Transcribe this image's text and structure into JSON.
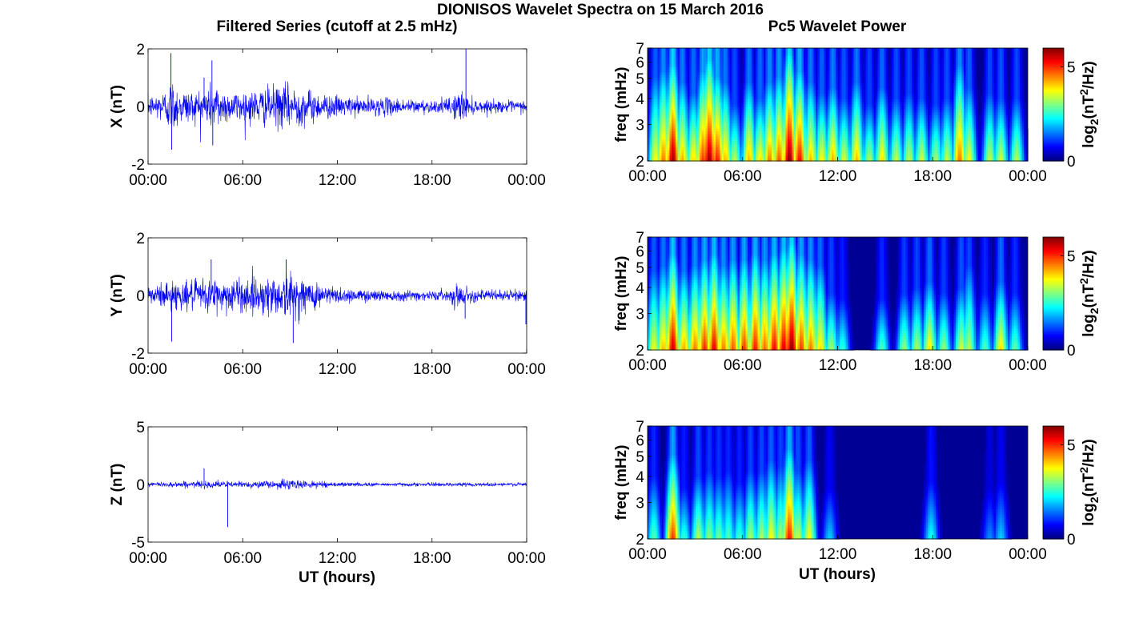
{
  "figure": {
    "suptitle": "DIONISOS Wavelet Spectra on 15 March 2016",
    "left_title": "Filtered Series (cutoff at 2.5 mHz)",
    "right_title": "Pc5 Wavelet Power",
    "xlabel": "UT (hours)"
  },
  "chart_data": [
    {
      "type": "line",
      "component": "X",
      "ylabel": "X (nT)",
      "ylim": [
        -2,
        2
      ],
      "yticks": [
        "-2",
        "0",
        "2"
      ],
      "xlim": [
        0,
        24
      ],
      "xticks": [
        "00:00",
        "06:00",
        "12:00",
        "18:00",
        "00:00"
      ],
      "color": "#0000ff",
      "envelope_hours": [
        0,
        1,
        1.5,
        2,
        3,
        4,
        4.5,
        5,
        6,
        7,
        8,
        9,
        10,
        11,
        12,
        13,
        14,
        15,
        16,
        17,
        18,
        19,
        19.8,
        20.3,
        21,
        22,
        23,
        24
      ],
      "envelope_amp": [
        0.35,
        0.55,
        0.95,
        0.6,
        0.55,
        0.75,
        0.8,
        0.5,
        0.55,
        0.6,
        0.7,
        0.75,
        0.6,
        0.45,
        0.35,
        0.3,
        0.3,
        0.3,
        0.25,
        0.25,
        0.2,
        0.25,
        0.6,
        0.3,
        0.2,
        0.2,
        0.2,
        0.2
      ],
      "spikes": [
        {
          "x": 1.45,
          "y": 1.85
        },
        {
          "x": 1.5,
          "y": -1.5
        },
        {
          "x": 4.05,
          "y": 1.6
        },
        {
          "x": 4.1,
          "y": -1.35
        },
        {
          "x": 20.15,
          "y": 2.0
        },
        {
          "x": 3.55,
          "y": 1.0
        }
      ]
    },
    {
      "type": "line",
      "component": "Y",
      "ylabel": "Y (nT)",
      "ylim": [
        -2,
        2
      ],
      "yticks": [
        "-2",
        "0",
        "2"
      ],
      "xlim": [
        0,
        24
      ],
      "xticks": [
        "00:00",
        "06:00",
        "12:00",
        "18:00",
        "00:00"
      ],
      "color": "#0000ff",
      "envelope_hours": [
        0,
        1,
        1.5,
        2,
        3,
        4,
        5,
        6,
        7,
        8,
        9,
        10,
        11,
        12,
        13,
        14,
        15,
        16,
        17,
        18,
        19,
        19.8,
        20.3,
        21,
        22,
        23,
        24
      ],
      "envelope_amp": [
        0.35,
        0.45,
        0.55,
        0.45,
        0.5,
        0.6,
        0.55,
        0.6,
        0.6,
        0.7,
        0.75,
        0.55,
        0.4,
        0.3,
        0.22,
        0.2,
        0.2,
        0.18,
        0.18,
        0.15,
        0.18,
        0.45,
        0.22,
        0.2,
        0.18,
        0.18,
        0.2
      ],
      "spikes": [
        {
          "x": 1.5,
          "y": -1.6
        },
        {
          "x": 4.0,
          "y": 1.25
        },
        {
          "x": 8.75,
          "y": 1.25
        },
        {
          "x": 9.2,
          "y": -1.65
        },
        {
          "x": 20.1,
          "y": -0.8
        },
        {
          "x": 23.95,
          "y": -1.0
        }
      ]
    },
    {
      "type": "line",
      "component": "Z",
      "ylabel": "Z (nT)",
      "ylim": [
        -5,
        5
      ],
      "yticks": [
        "-5",
        "0",
        "5"
      ],
      "xlim": [
        0,
        24
      ],
      "xticks": [
        "00:00",
        "06:00",
        "12:00",
        "18:00",
        "00:00"
      ],
      "color": "#0000ff",
      "envelope_hours": [
        0,
        2,
        4,
        6,
        8,
        9,
        10,
        12,
        14,
        16,
        18,
        20,
        22,
        24
      ],
      "envelope_amp": [
        0.2,
        0.25,
        0.3,
        0.25,
        0.35,
        0.45,
        0.3,
        0.2,
        0.15,
        0.15,
        0.15,
        0.15,
        0.15,
        0.15
      ],
      "spikes": [
        {
          "x": 3.55,
          "y": 1.4
        },
        {
          "x": 5.05,
          "y": -3.7
        }
      ]
    },
    {
      "type": "heatmap",
      "component": "X",
      "ylabel": "freq (mHz)",
      "yscale": "log",
      "ylim": [
        2,
        7
      ],
      "yticks": [
        "2",
        "3",
        "4",
        "5",
        "6",
        "7"
      ],
      "xlim": [
        0,
        24
      ],
      "xticks": [
        "00:00",
        "06:00",
        "12:00",
        "18:00",
        "00:00"
      ],
      "colormap": "jet",
      "clim": [
        0,
        6
      ],
      "colorbar_label": "log2(nT²/Hz)",
      "colorbar_ticks": [
        "0",
        "5"
      ],
      "bursts": [
        {
          "t": 0.5,
          "p": 3.8,
          "h": 0.75
        },
        {
          "t": 1.0,
          "p": 4.6,
          "h": 0.8
        },
        {
          "t": 1.6,
          "p": 5.9,
          "h": 0.85
        },
        {
          "t": 2.2,
          "p": 4.3,
          "h": 0.7
        },
        {
          "t": 2.9,
          "p": 4.0,
          "h": 0.6
        },
        {
          "t": 3.5,
          "p": 5.0,
          "h": 0.8
        },
        {
          "t": 3.9,
          "p": 5.9,
          "h": 0.9
        },
        {
          "t": 4.4,
          "p": 5.2,
          "h": 0.75
        },
        {
          "t": 4.9,
          "p": 4.2,
          "h": 0.7
        },
        {
          "t": 5.5,
          "p": 3.4,
          "h": 0.5
        },
        {
          "t": 6.4,
          "p": 4.2,
          "h": 0.7
        },
        {
          "t": 7.1,
          "p": 4.0,
          "h": 0.55
        },
        {
          "t": 7.7,
          "p": 4.6,
          "h": 0.7
        },
        {
          "t": 8.3,
          "p": 4.8,
          "h": 0.75
        },
        {
          "t": 8.95,
          "p": 6.0,
          "h": 0.95
        },
        {
          "t": 9.6,
          "p": 5.3,
          "h": 0.8
        },
        {
          "t": 10.3,
          "p": 4.2,
          "h": 0.7
        },
        {
          "t": 11.0,
          "p": 3.8,
          "h": 0.6
        },
        {
          "t": 11.7,
          "p": 4.3,
          "h": 0.65
        },
        {
          "t": 12.4,
          "p": 3.6,
          "h": 0.55
        },
        {
          "t": 13.2,
          "p": 4.2,
          "h": 0.7
        },
        {
          "t": 14.0,
          "p": 3.3,
          "h": 0.5
        },
        {
          "t": 14.8,
          "p": 4.0,
          "h": 0.65
        },
        {
          "t": 15.7,
          "p": 3.5,
          "h": 0.55
        },
        {
          "t": 16.5,
          "p": 3.4,
          "h": 0.6
        },
        {
          "t": 17.3,
          "p": 3.6,
          "h": 0.55
        },
        {
          "t": 18.2,
          "p": 3.3,
          "h": 0.5
        },
        {
          "t": 18.9,
          "p": 3.5,
          "h": 0.55
        },
        {
          "t": 19.7,
          "p": 4.6,
          "h": 0.85
        },
        {
          "t": 20.3,
          "p": 3.8,
          "h": 0.65
        },
        {
          "t": 21.6,
          "p": 3.4,
          "h": 0.6
        },
        {
          "t": 22.3,
          "p": 3.6,
          "h": 0.55
        },
        {
          "t": 23.3,
          "p": 3.4,
          "h": 0.55
        }
      ]
    },
    {
      "type": "heatmap",
      "component": "Y",
      "ylabel": "freq (mHz)",
      "yscale": "log",
      "ylim": [
        2,
        7
      ],
      "yticks": [
        "2",
        "3",
        "4",
        "5",
        "6",
        "7"
      ],
      "xlim": [
        0,
        24
      ],
      "xticks": [
        "00:00",
        "06:00",
        "12:00",
        "18:00",
        "00:00"
      ],
      "colormap": "jet",
      "clim": [
        0,
        6
      ],
      "colorbar_label": "log2(nT²/Hz)",
      "colorbar_ticks": [
        "0",
        "5"
      ],
      "bursts": [
        {
          "t": 0.4,
          "p": 3.7,
          "h": 0.7
        },
        {
          "t": 1.0,
          "p": 4.2,
          "h": 0.75
        },
        {
          "t": 1.6,
          "p": 5.6,
          "h": 0.85
        },
        {
          "t": 2.3,
          "p": 4.3,
          "h": 0.7
        },
        {
          "t": 3.0,
          "p": 4.6,
          "h": 0.75
        },
        {
          "t": 3.6,
          "p": 5.1,
          "h": 0.8
        },
        {
          "t": 4.2,
          "p": 5.4,
          "h": 0.85
        },
        {
          "t": 4.8,
          "p": 4.6,
          "h": 0.75
        },
        {
          "t": 5.4,
          "p": 4.8,
          "h": 0.8
        },
        {
          "t": 6.1,
          "p": 5.0,
          "h": 0.8
        },
        {
          "t": 6.8,
          "p": 5.2,
          "h": 0.85
        },
        {
          "t": 7.4,
          "p": 4.7,
          "h": 0.8
        },
        {
          "t": 8.0,
          "p": 5.3,
          "h": 0.85
        },
        {
          "t": 8.6,
          "p": 5.5,
          "h": 0.9
        },
        {
          "t": 9.1,
          "p": 6.0,
          "h": 0.95
        },
        {
          "t": 9.7,
          "p": 5.0,
          "h": 0.85
        },
        {
          "t": 10.3,
          "p": 4.6,
          "h": 0.8
        },
        {
          "t": 10.9,
          "p": 4.0,
          "h": 0.75
        },
        {
          "t": 11.6,
          "p": 3.3,
          "h": 0.5
        },
        {
          "t": 12.3,
          "p": 2.6,
          "h": 0.45
        },
        {
          "t": 14.8,
          "p": 2.8,
          "h": 0.45
        },
        {
          "t": 16.2,
          "p": 3.2,
          "h": 0.5
        },
        {
          "t": 17.0,
          "p": 3.3,
          "h": 0.55
        },
        {
          "t": 17.8,
          "p": 4.0,
          "h": 0.6
        },
        {
          "t": 18.7,
          "p": 3.2,
          "h": 0.5
        },
        {
          "t": 19.8,
          "p": 3.6,
          "h": 0.55
        },
        {
          "t": 20.3,
          "p": 3.4,
          "h": 0.75
        },
        {
          "t": 21.3,
          "p": 2.8,
          "h": 0.5
        },
        {
          "t": 22.3,
          "p": 4.0,
          "h": 0.6
        },
        {
          "t": 23.2,
          "p": 2.9,
          "h": 0.5
        }
      ]
    },
    {
      "type": "heatmap",
      "component": "Z",
      "ylabel": "freq (mHz)",
      "yscale": "log",
      "ylim": [
        2,
        7
      ],
      "yticks": [
        "2",
        "3",
        "4",
        "5",
        "6",
        "7"
      ],
      "xlim": [
        0,
        24
      ],
      "xticks": [
        "00:00",
        "06:00",
        "12:00",
        "18:00",
        "00:00"
      ],
      "colormap": "jet",
      "clim": [
        0,
        6
      ],
      "colorbar_label": "log2(nT²/Hz)",
      "colorbar_ticks": [
        "0",
        "5"
      ],
      "bursts": [
        {
          "t": 0.4,
          "p": 2.8,
          "h": 0.55
        },
        {
          "t": 1.6,
          "p": 5.0,
          "h": 0.75
        },
        {
          "t": 2.3,
          "p": 2.6,
          "h": 0.45
        },
        {
          "t": 3.2,
          "p": 3.4,
          "h": 0.55
        },
        {
          "t": 3.9,
          "p": 3.1,
          "h": 0.6
        },
        {
          "t": 4.5,
          "p": 3.0,
          "h": 0.55
        },
        {
          "t": 5.1,
          "p": 2.8,
          "h": 0.6
        },
        {
          "t": 5.8,
          "p": 2.7,
          "h": 0.5
        },
        {
          "t": 6.5,
          "p": 3.3,
          "h": 0.6
        },
        {
          "t": 7.2,
          "p": 3.4,
          "h": 0.6
        },
        {
          "t": 7.8,
          "p": 3.8,
          "h": 0.7
        },
        {
          "t": 8.4,
          "p": 3.3,
          "h": 0.65
        },
        {
          "t": 8.95,
          "p": 5.2,
          "h": 0.8
        },
        {
          "t": 9.5,
          "p": 3.5,
          "h": 0.6
        },
        {
          "t": 10.2,
          "p": 3.8,
          "h": 0.7
        },
        {
          "t": 11.5,
          "p": 2.0,
          "h": 0.45
        },
        {
          "t": 17.9,
          "p": 2.4,
          "h": 0.5
        },
        {
          "t": 21.6,
          "p": 1.6,
          "h": 0.45
        },
        {
          "t": 22.3,
          "p": 2.0,
          "h": 0.5
        }
      ]
    }
  ]
}
